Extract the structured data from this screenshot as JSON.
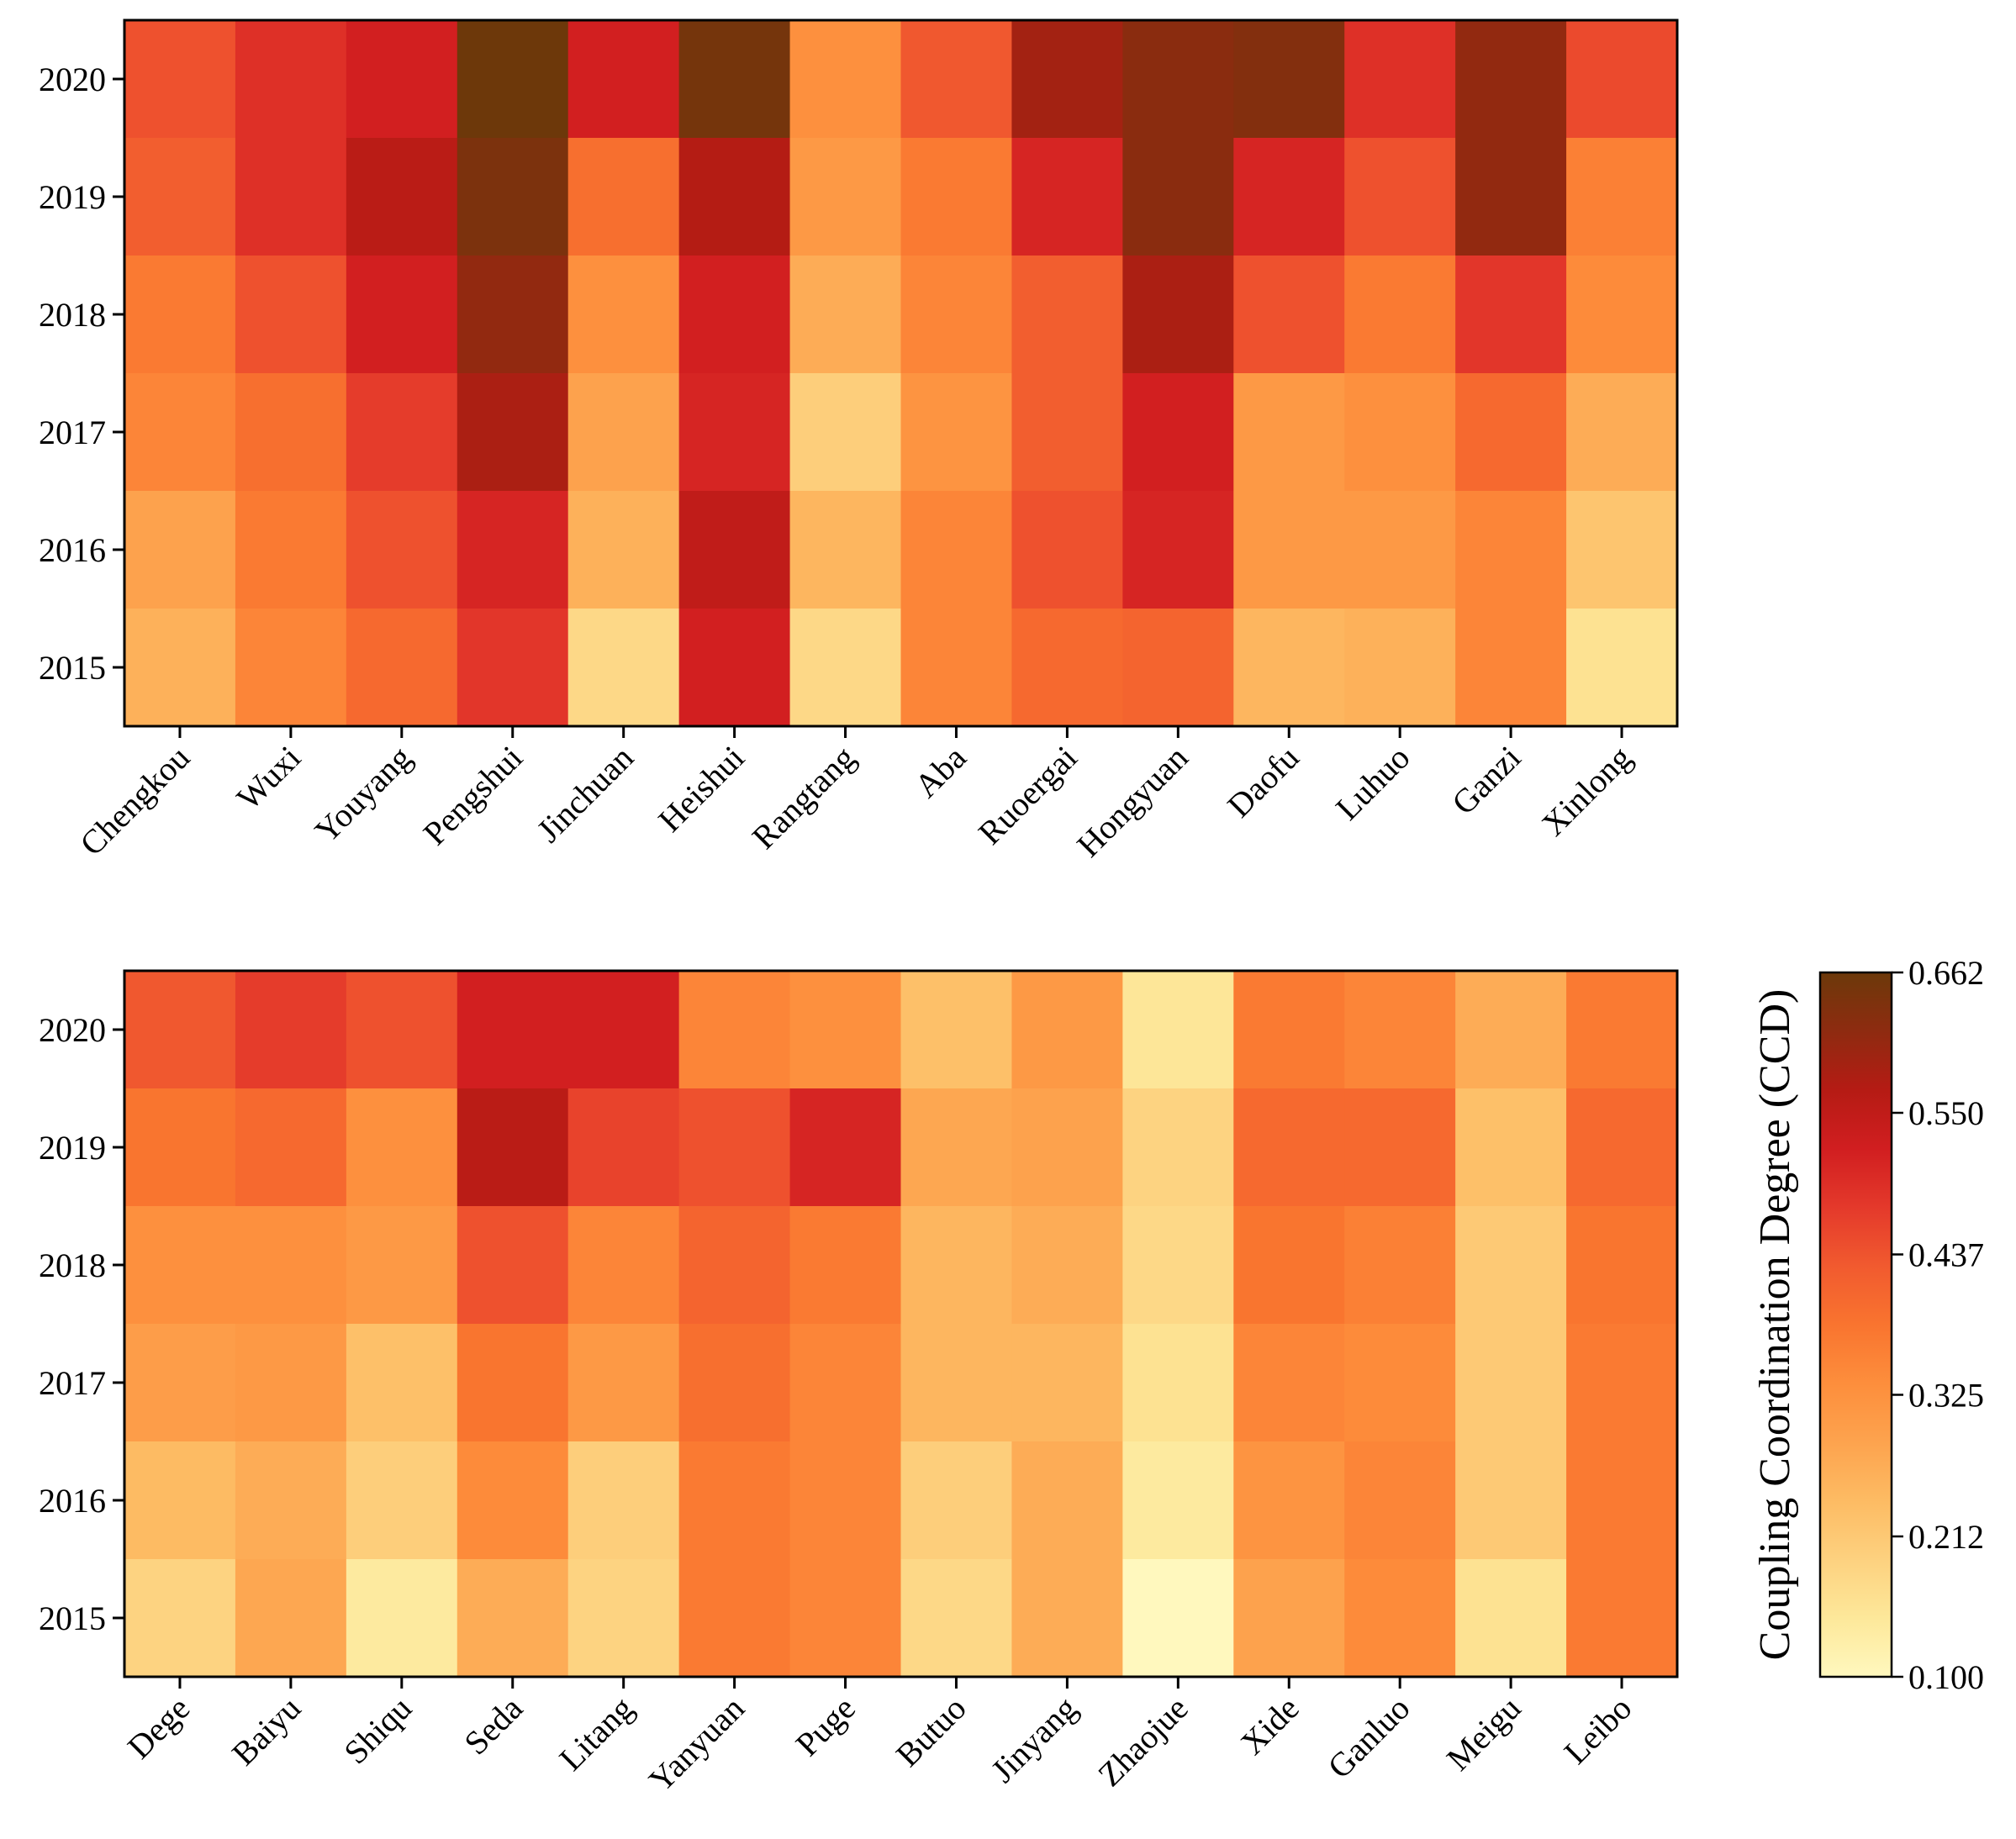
{
  "chart_data": {
    "type": "heatmap",
    "years_top_to_bottom": [
      "2020",
      "2019",
      "2018",
      "2017",
      "2016",
      "2015"
    ],
    "panels": [
      {
        "x": [
          "Chengkou",
          "Wuxi",
          "Youyang",
          "Pengshui",
          "Jinchuan",
          "Heishui",
          "Rangtang",
          "Aba",
          "Ruoergai",
          "Hongyuan",
          "Daofu",
          "Luhuo",
          "Ganzi",
          "Xinlong"
        ],
        "values": [
          [
            0.44,
            0.49,
            0.52,
            0.66,
            0.52,
            0.65,
            0.33,
            0.43,
            0.59,
            0.62,
            0.63,
            0.49,
            0.61,
            0.45
          ],
          [
            0.42,
            0.49,
            0.56,
            0.64,
            0.39,
            0.57,
            0.31,
            0.37,
            0.51,
            0.62,
            0.51,
            0.44,
            0.61,
            0.36
          ],
          [
            0.37,
            0.44,
            0.52,
            0.61,
            0.33,
            0.52,
            0.27,
            0.35,
            0.42,
            0.58,
            0.44,
            0.37,
            0.48,
            0.34
          ],
          [
            0.35,
            0.39,
            0.47,
            0.58,
            0.29,
            0.51,
            0.2,
            0.32,
            0.42,
            0.52,
            0.31,
            0.33,
            0.4,
            0.27
          ],
          [
            0.29,
            0.37,
            0.44,
            0.51,
            0.26,
            0.55,
            0.25,
            0.35,
            0.44,
            0.51,
            0.31,
            0.31,
            0.35,
            0.22
          ],
          [
            0.26,
            0.35,
            0.4,
            0.48,
            0.18,
            0.52,
            0.18,
            0.35,
            0.4,
            0.41,
            0.25,
            0.26,
            0.35,
            0.16
          ]
        ]
      },
      {
        "x": [
          "Dege",
          "Baiyu",
          "Shiqu",
          "Seda",
          "Litang",
          "Yanyuan",
          "Puge",
          "Butuo",
          "Jinyang",
          "Zhaojue",
          "Xide",
          "Ganluo",
          "Meigu",
          "Leibo"
        ],
        "values": [
          [
            0.43,
            0.47,
            0.44,
            0.52,
            0.52,
            0.35,
            0.33,
            0.23,
            0.31,
            0.15,
            0.37,
            0.35,
            0.27,
            0.37
          ],
          [
            0.38,
            0.4,
            0.33,
            0.56,
            0.46,
            0.44,
            0.51,
            0.28,
            0.29,
            0.19,
            0.4,
            0.4,
            0.23,
            0.4
          ],
          [
            0.33,
            0.33,
            0.31,
            0.44,
            0.35,
            0.41,
            0.37,
            0.25,
            0.27,
            0.18,
            0.38,
            0.36,
            0.21,
            0.38
          ],
          [
            0.3,
            0.31,
            0.23,
            0.38,
            0.31,
            0.39,
            0.35,
            0.25,
            0.25,
            0.16,
            0.35,
            0.34,
            0.21,
            0.37
          ],
          [
            0.24,
            0.27,
            0.2,
            0.34,
            0.2,
            0.37,
            0.35,
            0.2,
            0.27,
            0.14,
            0.32,
            0.35,
            0.21,
            0.37
          ],
          [
            0.19,
            0.28,
            0.14,
            0.27,
            0.19,
            0.37,
            0.35,
            0.18,
            0.27,
            0.1,
            0.29,
            0.34,
            0.16,
            0.37
          ]
        ]
      }
    ],
    "colorbar": {
      "label": "Coupling Coordination Degree (CCD)",
      "min": 0.1,
      "max": 0.662,
      "ticks": [
        "0.100",
        "0.212",
        "0.325",
        "0.437",
        "0.550",
        "0.662"
      ],
      "colors": [
        "#fff8be",
        "#fde89a",
        "#fdd17f",
        "#fdbb63",
        "#fda34e",
        "#fd8e3c",
        "#f9742f",
        "#f15a2f",
        "#e4392b",
        "#d11e20",
        "#b51b14",
        "#8e2b10",
        "#6c390a"
      ]
    }
  }
}
